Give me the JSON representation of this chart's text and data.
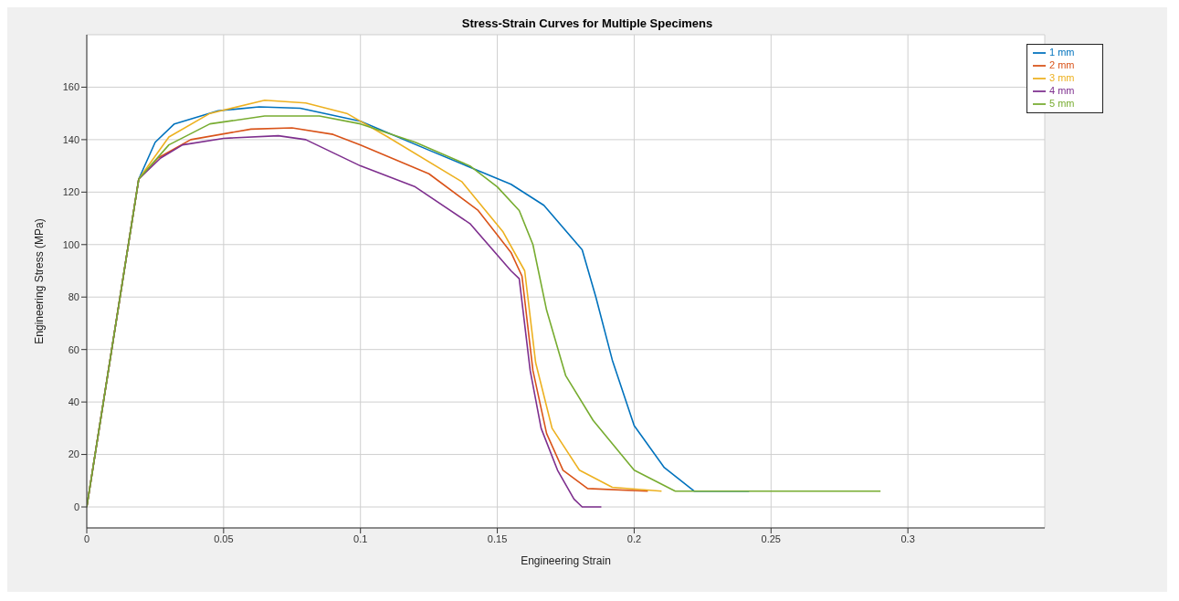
{
  "chart_data": {
    "type": "line",
    "title": "Stress-Strain Curves for Multiple Specimens",
    "xlabel": "Engineering Strain",
    "ylabel": "Engineering Stress (MPa)",
    "xlim": [
      0,
      0.35
    ],
    "xticks": [
      0,
      0.05,
      0.1,
      0.15,
      0.2,
      0.25,
      0.3
    ],
    "ylim": [
      -8,
      180
    ],
    "yticks": [
      0,
      20,
      40,
      60,
      80,
      100,
      120,
      140,
      160
    ],
    "grid": true,
    "legend": "top right",
    "marker": "none",
    "line_style": "solid",
    "series": [
      {
        "name": "1 mm",
        "color": "#0072bd",
        "x": [
          0,
          0.019,
          0.025,
          0.032,
          0.048,
          0.063,
          0.078,
          0.1,
          0.125,
          0.155,
          0.167,
          0.181,
          0.186,
          0.192,
          0.2,
          0.211,
          0.222,
          0.242
        ],
        "values": [
          0,
          125,
          139,
          146,
          151,
          152.5,
          152,
          147,
          136,
          123,
          115,
          98,
          80,
          56,
          31,
          15,
          6,
          6
        ]
      },
      {
        "name": "2 mm",
        "color": "#d95319",
        "x": [
          0,
          0.019,
          0.026,
          0.038,
          0.06,
          0.075,
          0.09,
          0.1,
          0.125,
          0.143,
          0.155,
          0.159,
          0.163,
          0.168,
          0.174,
          0.183,
          0.205
        ],
        "values": [
          0,
          125,
          133,
          140,
          144,
          144.5,
          142,
          138,
          127,
          113,
          97,
          88,
          52,
          28,
          14,
          7,
          6
        ]
      },
      {
        "name": "3 mm",
        "color": "#edb120",
        "x": [
          0,
          0.019,
          0.03,
          0.045,
          0.065,
          0.08,
          0.095,
          0.11,
          0.137,
          0.152,
          0.16,
          0.164,
          0.17,
          0.18,
          0.192,
          0.21
        ],
        "values": [
          0,
          125,
          141,
          150,
          155,
          154,
          150,
          141,
          124,
          105,
          90,
          55,
          30,
          14,
          7.5,
          6
        ]
      },
      {
        "name": "4 mm",
        "color": "#7e2f8e",
        "x": [
          0,
          0.019,
          0.027,
          0.035,
          0.05,
          0.07,
          0.08,
          0.1,
          0.12,
          0.14,
          0.155,
          0.158,
          0.162,
          0.166,
          0.172,
          0.178,
          0.181,
          0.188
        ],
        "values": [
          0,
          125,
          133,
          138,
          140.5,
          141.5,
          140,
          130,
          122,
          108,
          90,
          87,
          52,
          30,
          14,
          3,
          0,
          0
        ]
      },
      {
        "name": "5 mm",
        "color": "#77ac30",
        "x": [
          0,
          0.019,
          0.03,
          0.045,
          0.065,
          0.085,
          0.1,
          0.12,
          0.14,
          0.15,
          0.158,
          0.163,
          0.168,
          0.175,
          0.185,
          0.2,
          0.215,
          0.29
        ],
        "values": [
          0,
          125,
          138,
          146,
          149,
          149,
          146,
          139,
          130,
          122,
          113,
          100,
          75,
          50,
          33,
          14,
          6,
          6
        ]
      }
    ]
  }
}
